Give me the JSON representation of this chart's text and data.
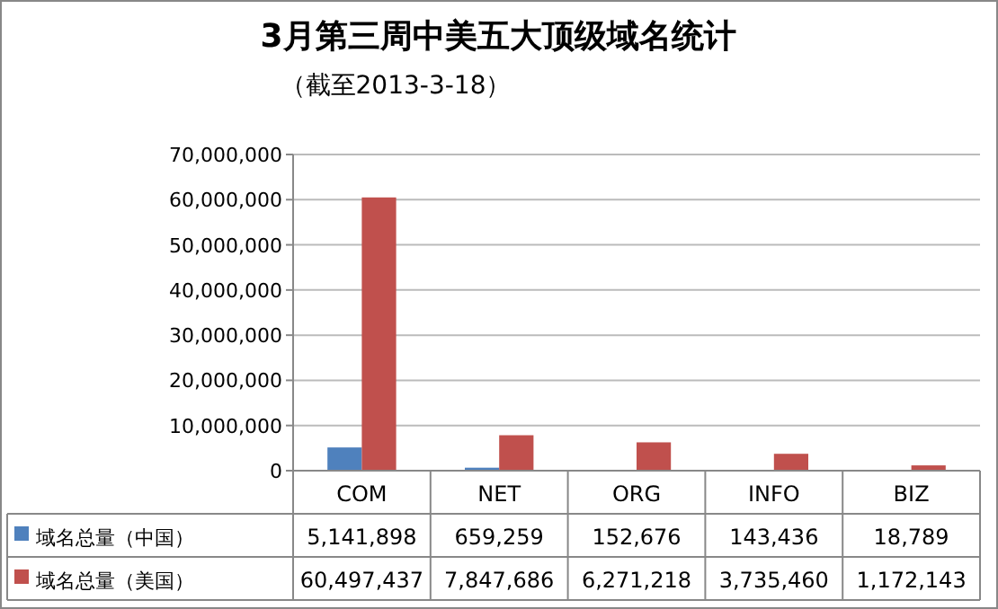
{
  "chart_data": {
    "type": "bar",
    "title": "3月第三周中美五大顶级域名统计",
    "subtitle": "（截至2013-3-18）",
    "categories": [
      "COM",
      "NET",
      "ORG",
      "INFO",
      "BIZ"
    ],
    "series": [
      {
        "name": "域名总量（中国）",
        "color": "#4f81bd",
        "values": [
          5141898,
          659259,
          152676,
          143436,
          18789
        ],
        "value_labels": [
          "5,141,898",
          "659,259",
          "152,676",
          "143,436",
          "18,789"
        ]
      },
      {
        "name": "域名总量（美国）",
        "color": "#c0504d",
        "values": [
          60497437,
          7847686,
          6271218,
          3735460,
          1172143
        ],
        "value_labels": [
          "60,497,437",
          "7,847,686",
          "6,271,218",
          "3,735,460",
          "1,172,143"
        ]
      }
    ],
    "ylim": [
      0,
      70000000
    ],
    "yticks": [
      {
        "value": 0,
        "label": "0"
      },
      {
        "value": 10000000,
        "label": "10,000,000"
      },
      {
        "value": 20000000,
        "label": "20,000,000"
      },
      {
        "value": 30000000,
        "label": "30,000,000"
      },
      {
        "value": 40000000,
        "label": "40,000,000"
      },
      {
        "value": 50000000,
        "label": "50,000,000"
      },
      {
        "value": 60000000,
        "label": "60,000,000"
      },
      {
        "value": 70000000,
        "label": "70,000,000"
      }
    ],
    "grid": "y",
    "legend": "bottom"
  }
}
